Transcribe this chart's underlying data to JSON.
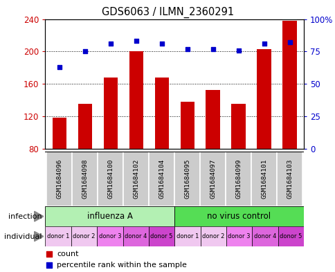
{
  "title": "GDS6063 / ILMN_2360291",
  "samples": [
    "GSM1684096",
    "GSM1684098",
    "GSM1684100",
    "GSM1684102",
    "GSM1684104",
    "GSM1684095",
    "GSM1684097",
    "GSM1684099",
    "GSM1684101",
    "GSM1684103"
  ],
  "counts": [
    119,
    136,
    168,
    200,
    168,
    138,
    153,
    136,
    203,
    238
  ],
  "percentiles": [
    63,
    75,
    81,
    83,
    81,
    77,
    77,
    76,
    81,
    82
  ],
  "ylim_left": [
    80,
    240
  ],
  "ylim_right": [
    0,
    100
  ],
  "yticks_left": [
    80,
    120,
    160,
    200,
    240
  ],
  "yticks_right": [
    0,
    25,
    50,
    75,
    100
  ],
  "ytick_labels_right": [
    "0",
    "25",
    "50",
    "75",
    "100%"
  ],
  "bar_color": "#cc0000",
  "dot_color": "#0000cc",
  "infection_groups": [
    {
      "label": "influenza A",
      "start": 0,
      "end": 5,
      "color": "#b3f0b3"
    },
    {
      "label": "no virus control",
      "start": 5,
      "end": 10,
      "color": "#55dd55"
    }
  ],
  "individual_labels": [
    "donor 1",
    "donor 2",
    "donor 3",
    "donor 4",
    "donor 5",
    "donor 1",
    "donor 2",
    "donor 3",
    "donor 4",
    "donor 5"
  ],
  "individual_colors": [
    "#f0c8f0",
    "#f0c8f0",
    "#ee82ee",
    "#dd66dd",
    "#cc44cc",
    "#f0c8f0",
    "#f0c8f0",
    "#ee82ee",
    "#dd66dd",
    "#cc44cc"
  ],
  "sample_box_color": "#cccccc",
  "legend_count_color": "#cc0000",
  "legend_percentile_color": "#0000cc"
}
